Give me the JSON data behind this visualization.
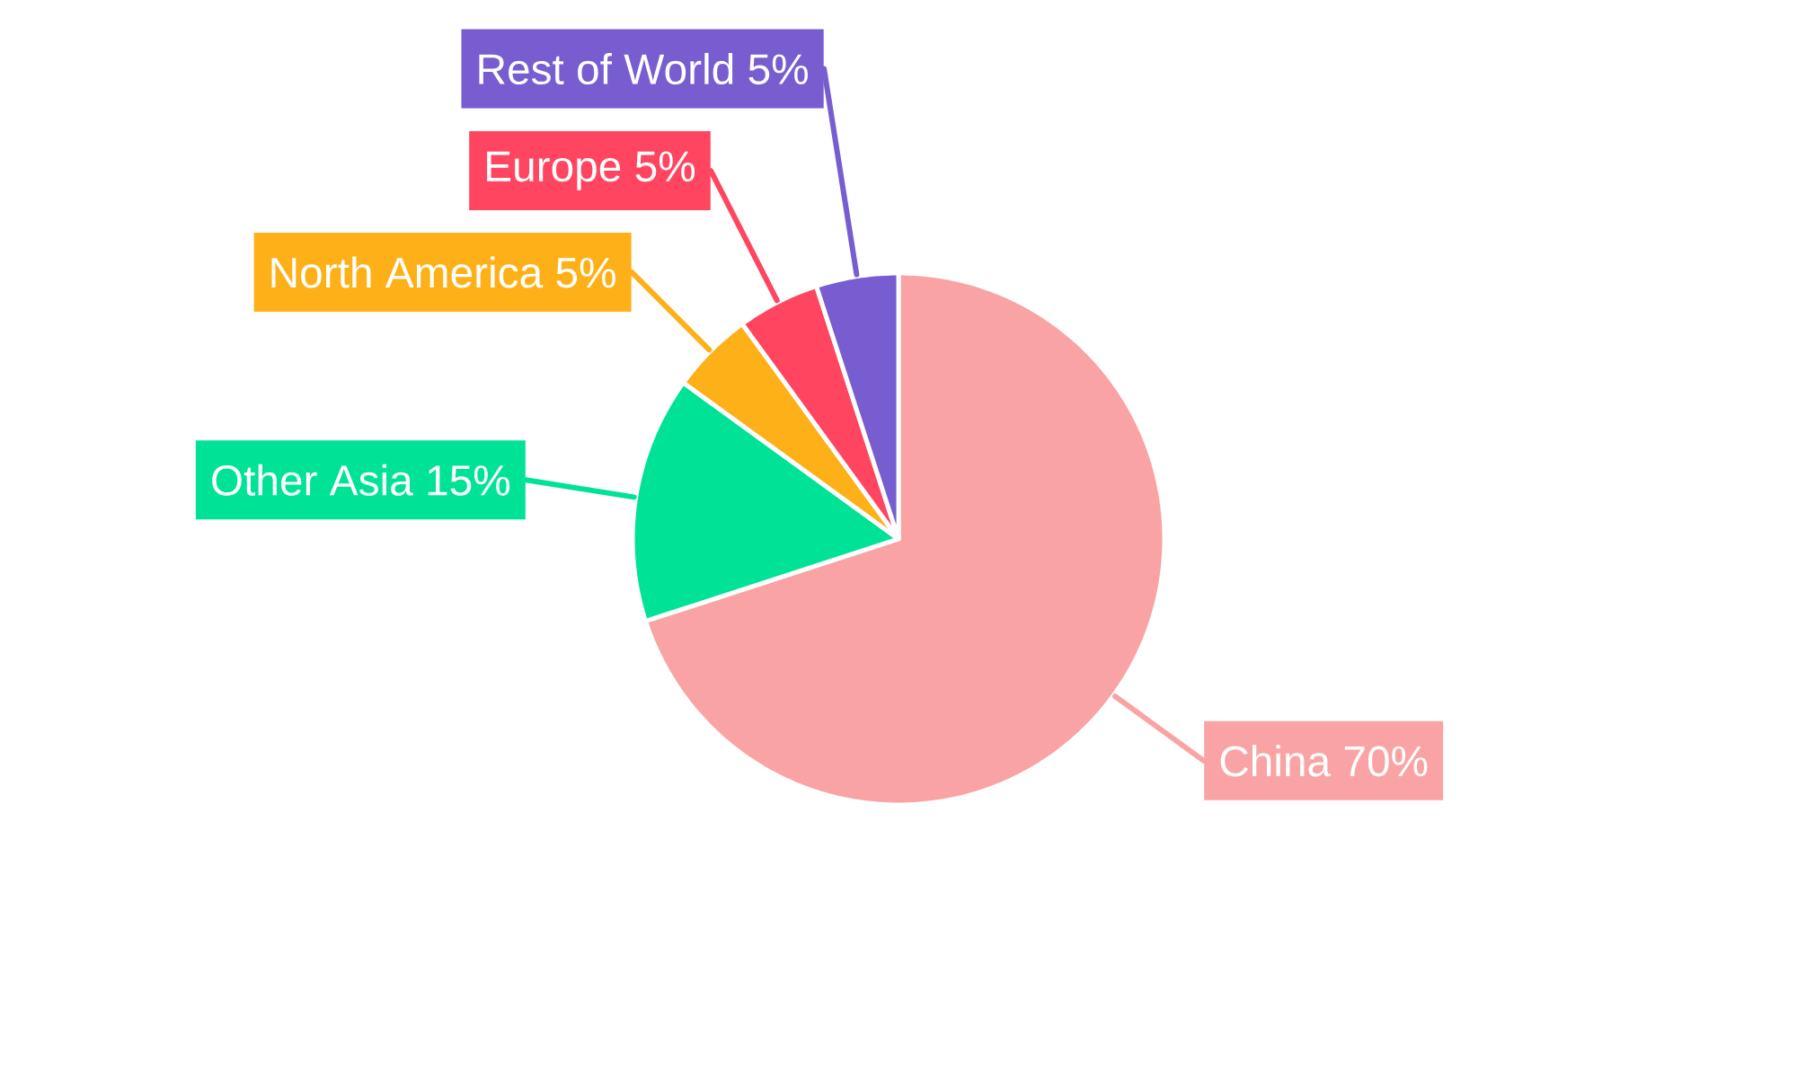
{
  "chart_data": {
    "type": "pie",
    "categories": [
      "China",
      "Other Asia",
      "North America",
      "Europe",
      "Rest of World"
    ],
    "values": [
      70,
      15,
      5,
      5,
      5
    ],
    "colors": [
      "#f9a3a4",
      "#00e396",
      "#feb019",
      "#ff4560",
      "#775dd0"
    ],
    "value_labels": [
      "70%",
      "15%",
      "5%",
      "5%",
      "5%"
    ]
  }
}
